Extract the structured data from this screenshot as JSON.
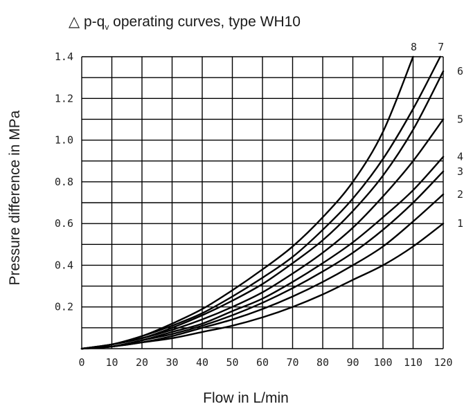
{
  "chart_data": {
    "type": "line",
    "title": {
      "symbol": "△",
      "pre": " p-q",
      "sub": "v",
      "post": "  operating curves, type WH10"
    },
    "xlabel": "Flow in L/min",
    "ylabel": "Pressure difference in MPa",
    "xlim": [
      0,
      120
    ],
    "ylim": [
      0,
      1.4
    ],
    "grid": true,
    "x_ticks": [
      "0",
      "10",
      "20",
      "30",
      "40",
      "50",
      "60",
      "70",
      "80",
      "90",
      "100",
      "110",
      "120"
    ],
    "y_ticks": [
      {
        "value": 0.2,
        "label": "0.2"
      },
      {
        "value": 0.4,
        "label": "0.4"
      },
      {
        "value": 0.6,
        "label": "0.6"
      },
      {
        "value": 0.8,
        "label": "0.8"
      },
      {
        "value": 1.0,
        "label": "1.0"
      },
      {
        "value": 1.2,
        "label": "1.2"
      },
      {
        "value": 1.4,
        "label": "1.4"
      }
    ],
    "series": [
      {
        "name": "1",
        "x": [
          0,
          10,
          20,
          30,
          40,
          50,
          60,
          70,
          80,
          90,
          100,
          110,
          120
        ],
        "y": [
          0,
          0.01,
          0.03,
          0.05,
          0.08,
          0.11,
          0.15,
          0.2,
          0.26,
          0.33,
          0.4,
          0.49,
          0.6
        ]
      },
      {
        "name": "2",
        "x": [
          0,
          10,
          20,
          30,
          40,
          50,
          60,
          70,
          80,
          90,
          100,
          110,
          120
        ],
        "y": [
          0,
          0.01,
          0.03,
          0.06,
          0.1,
          0.14,
          0.19,
          0.25,
          0.32,
          0.4,
          0.49,
          0.61,
          0.74
        ]
      },
      {
        "name": "3",
        "x": [
          0,
          10,
          20,
          30,
          40,
          50,
          60,
          70,
          80,
          90,
          100,
          110,
          120
        ],
        "y": [
          0,
          0.01,
          0.04,
          0.07,
          0.11,
          0.16,
          0.22,
          0.29,
          0.37,
          0.46,
          0.57,
          0.7,
          0.85
        ]
      },
      {
        "name": "4",
        "x": [
          0,
          10,
          20,
          30,
          40,
          50,
          60,
          70,
          80,
          90,
          100,
          110,
          120
        ],
        "y": [
          0,
          0.01,
          0.04,
          0.08,
          0.12,
          0.18,
          0.24,
          0.32,
          0.41,
          0.51,
          0.63,
          0.76,
          0.92
        ]
      },
      {
        "name": "5",
        "x": [
          0,
          10,
          20,
          30,
          40,
          50,
          60,
          70,
          80,
          90,
          100,
          110,
          120
        ],
        "y": [
          0,
          0.02,
          0.05,
          0.09,
          0.14,
          0.2,
          0.27,
          0.36,
          0.46,
          0.58,
          0.73,
          0.9,
          1.1
        ]
      },
      {
        "name": "6",
        "x": [
          0,
          10,
          20,
          30,
          40,
          50,
          60,
          70,
          80,
          90,
          100,
          110,
          120
        ],
        "y": [
          0,
          0.02,
          0.05,
          0.1,
          0.16,
          0.23,
          0.31,
          0.41,
          0.52,
          0.66,
          0.83,
          1.05,
          1.33
        ]
      },
      {
        "name": "7",
        "x": [
          0,
          10,
          20,
          30,
          40,
          50,
          60,
          70,
          80,
          90,
          100,
          110,
          119
        ],
        "y": [
          0,
          0.02,
          0.06,
          0.11,
          0.17,
          0.25,
          0.34,
          0.44,
          0.57,
          0.72,
          0.91,
          1.15,
          1.4
        ]
      },
      {
        "name": "8",
        "x": [
          0,
          10,
          20,
          30,
          40,
          50,
          60,
          70,
          80,
          90,
          100,
          110
        ],
        "y": [
          0,
          0.02,
          0.06,
          0.12,
          0.19,
          0.28,
          0.38,
          0.49,
          0.63,
          0.8,
          1.04,
          1.4
        ]
      }
    ]
  }
}
